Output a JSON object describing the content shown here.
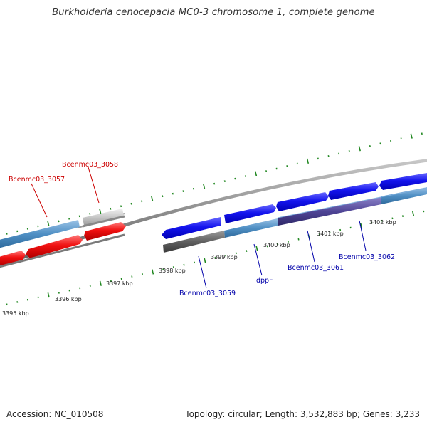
{
  "title": "Burkholderia cenocepacia MC0-3 chromosome 1, complete genome",
  "footer": {
    "accession_label": "Accession:",
    "accession": "NC_010508",
    "topology_label": "Topology:",
    "topology": "circular;",
    "length_label": "Length:",
    "length": "3,532,883 bp;",
    "genes_label": "Genes:",
    "genes": "3,233"
  },
  "scale_labels": [
    "3395 kbp",
    "3396 kbp",
    "3397 kbp",
    "3398 kbp",
    "3399 kbp",
    "3400 kbp",
    "3401 kbp",
    "3402 kbp"
  ],
  "gene_labels": {
    "red": [
      "Bcenmc03_3057",
      "Bcenmc03_3058"
    ],
    "blue": [
      "Bcenmc03_3059",
      "dppF",
      "Bcenmc03_3061",
      "Bcenmc03_3062"
    ]
  },
  "colors": {
    "red_label": "#cc0000",
    "blue_label": "#0000aa",
    "tick_green": "#228822",
    "track_gray": "#888888"
  }
}
